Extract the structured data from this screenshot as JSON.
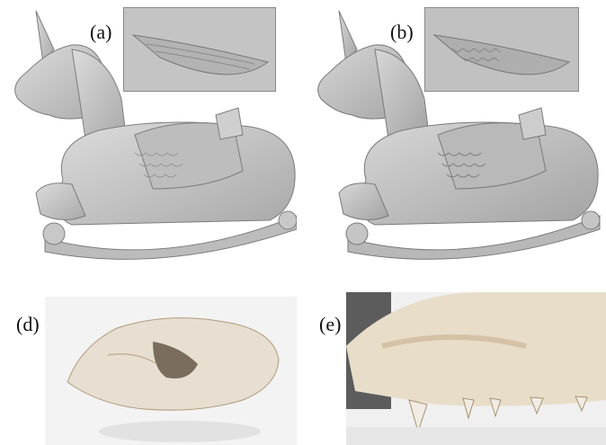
{
  "figure": {
    "panels": [
      {
        "id": "a",
        "label": "(a)",
        "content": "rocking-horse-mesh-render-with-inset"
      },
      {
        "id": "b",
        "label": "(b)",
        "content": "rocking-horse-mesh-render-with-inset"
      },
      {
        "id": "d",
        "label": "(d)",
        "content": "skull-photo"
      },
      {
        "id": "e",
        "label": "(e)",
        "content": "skull-jaw-closeup-photo"
      }
    ]
  },
  "colors": {
    "mesh_gray": "#c9c9c9",
    "mesh_dark": "#8e8e8e",
    "bone": "#e9e1d3",
    "bone_dark": "#b79d79",
    "backdrop_light": "#f1f1f1",
    "backdrop_dark": "#5c5c5c"
  }
}
